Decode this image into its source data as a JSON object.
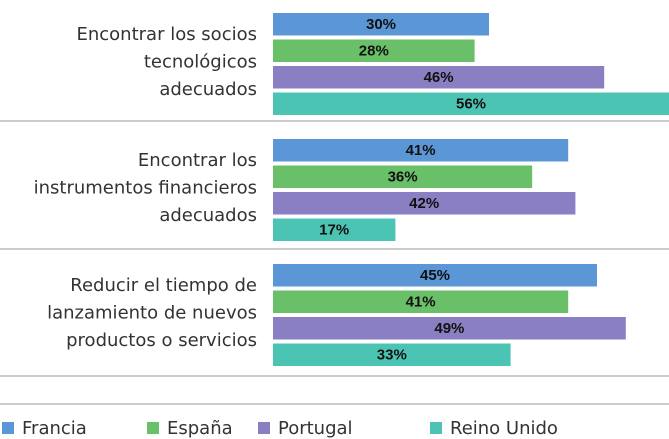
{
  "chart_data": {
    "type": "bar",
    "orientation": "horizontal",
    "categories": [
      [
        "Encontrar los socios",
        "tecnológicos",
        "adecuados"
      ],
      [
        "Encontrar los",
        "instrumentos financieros",
        "adecuados"
      ],
      [
        "Reducir el tiempo de",
        "lanzamiento de nuevos",
        "productos o servicios"
      ]
    ],
    "series": [
      {
        "name": "Francia",
        "color": "#5b97d6",
        "values": [
          30,
          41,
          45
        ],
        "value_labels": [
          "30%",
          "41%",
          "45%"
        ]
      },
      {
        "name": "España",
        "color": "#6abf69",
        "values": [
          28,
          36,
          41
        ],
        "value_labels": [
          "28%",
          "36%",
          "41%"
        ]
      },
      {
        "name": "Portugal",
        "color": "#8a7fc2",
        "values": [
          46,
          42,
          49
        ],
        "value_labels": [
          "46%",
          "42%",
          "49%"
        ]
      },
      {
        "name": "Reino Unido",
        "color": "#4cc4b4",
        "values": [
          56,
          17,
          33
        ],
        "value_labels": [
          "56%",
          "17%",
          "33%"
        ]
      }
    ]
  }
}
